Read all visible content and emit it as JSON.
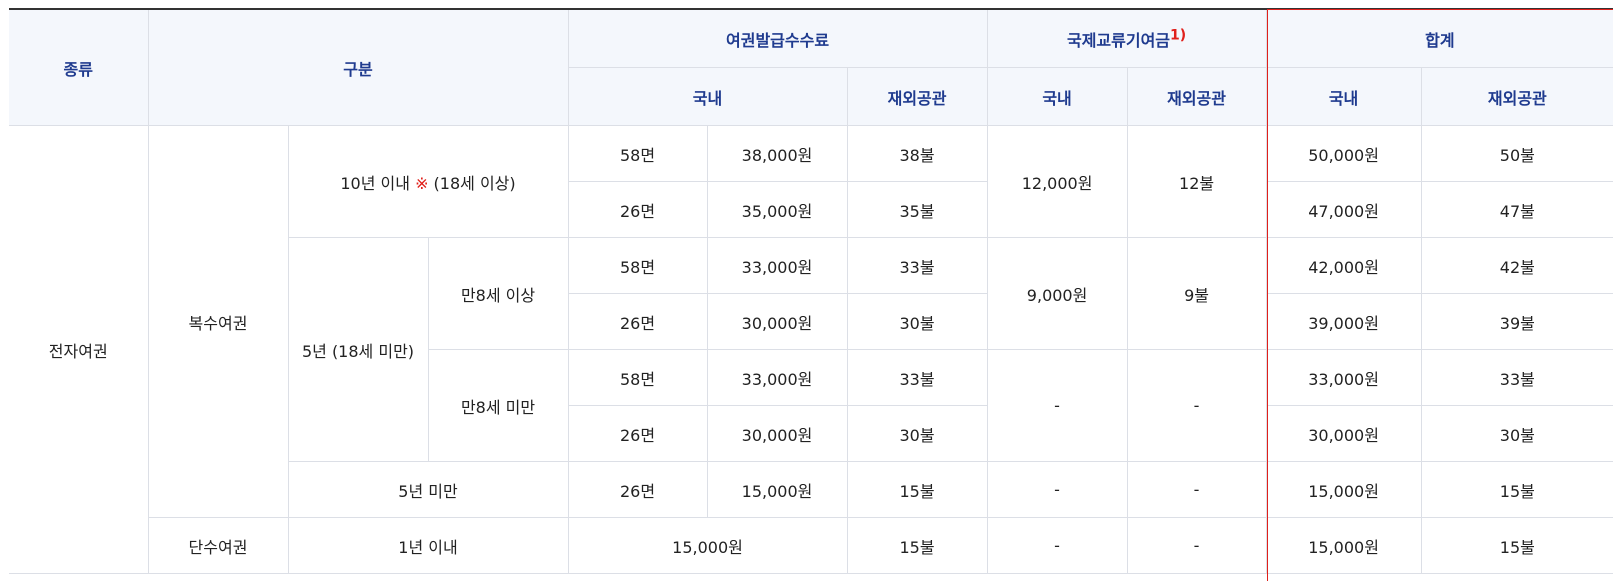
{
  "headers": {
    "type": "종류",
    "category": "구분",
    "issue_fee": "여권발급수수료",
    "intl_fund": "국제교류기여금",
    "intl_fund_note": "1)",
    "total": "합계",
    "domestic": "국내",
    "overseas": "재외공관"
  },
  "labels": {
    "electronic_passport": "전자여권",
    "multiple_passport": "복수여권",
    "single_passport": "단수여권",
    "ten_years_prefix": "10년 이내 ",
    "ten_years_mark": "※",
    "ten_years_suffix": " (18세 이상)",
    "five_years_under18": "5년 (18세 미만)",
    "age8_over": "만8세 이상",
    "age8_under": "만8세 미만",
    "under_five_years": "5년 미만",
    "one_year": "1년 이내"
  },
  "rows": {
    "r1": {
      "pages": "58면",
      "dom_fee": "38,000원",
      "ovs_fee": "38불",
      "total_dom": "50,000원",
      "total_ovs": "50불"
    },
    "r2": {
      "pages": "26면",
      "dom_fee": "35,000원",
      "ovs_fee": "35불",
      "total_dom": "47,000원",
      "total_ovs": "47불"
    },
    "r3": {
      "pages": "58면",
      "dom_fee": "33,000원",
      "ovs_fee": "33불",
      "total_dom": "42,000원",
      "total_ovs": "42불"
    },
    "r4": {
      "pages": "26면",
      "dom_fee": "30,000원",
      "ovs_fee": "30불",
      "total_dom": "39,000원",
      "total_ovs": "39불"
    },
    "r5": {
      "pages": "58면",
      "dom_fee": "33,000원",
      "ovs_fee": "33불",
      "total_dom": "33,000원",
      "total_ovs": "33불"
    },
    "r6": {
      "pages": "26면",
      "dom_fee": "30,000원",
      "ovs_fee": "30불",
      "total_dom": "30,000원",
      "total_ovs": "30불"
    },
    "r7": {
      "pages": "26면",
      "dom_fee": "15,000원",
      "ovs_fee": "15불",
      "fund_dom": "-",
      "fund_ovs": "-",
      "total_dom": "15,000원",
      "total_ovs": "15불"
    },
    "r8": {
      "dom_fee": "15,000원",
      "ovs_fee": "15불",
      "fund_dom": "-",
      "fund_ovs": "-",
      "total_dom": "15,000원",
      "total_ovs": "15불"
    }
  },
  "fund": {
    "g1_dom": "12,000원",
    "g1_ovs": "12불",
    "g2_dom": "9,000원",
    "g2_ovs": "9불",
    "g3_dom": "-",
    "g3_ovs": "-"
  }
}
